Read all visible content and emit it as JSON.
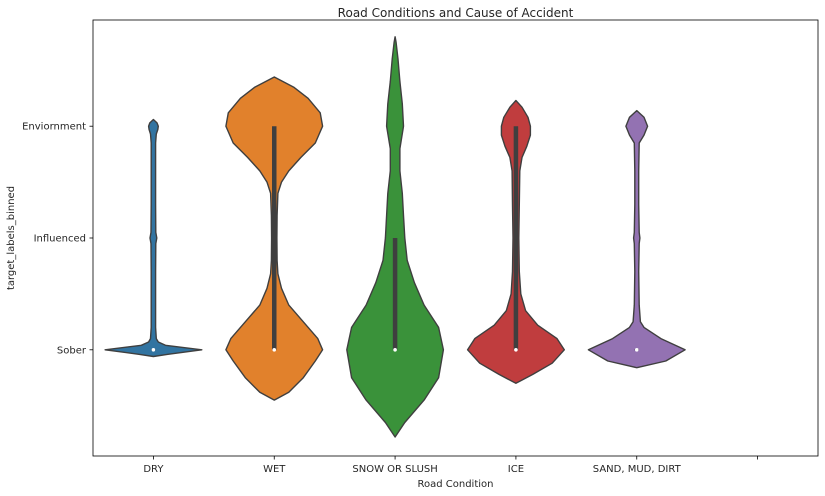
{
  "chart_data": {
    "type": "violin",
    "title": "Road Conditions and Cause of Accident",
    "xlabel": "Road Condition",
    "ylabel": "target_labels_binned",
    "categories": [
      "DRY",
      "WET",
      "SNOW OR SLUSH",
      "ICE",
      "SAND, MUD, DIRT"
    ],
    "y_categories": [
      "Sober",
      "Influenced",
      "Enviornment"
    ],
    "y_values": [
      0,
      1,
      2
    ],
    "ylim": [
      -0.95,
      2.95
    ],
    "colors": [
      "#3274a1",
      "#e1812c",
      "#3a923a",
      "#c03d3e",
      "#9372b2"
    ],
    "violins": [
      {
        "category": "DRY",
        "median": 0,
        "q1": 0,
        "q3": 0,
        "profile_y": [
          -0.06,
          -0.04,
          0,
          0.04,
          0.07,
          0.1,
          0.2,
          0.4,
          0.7,
          0.95,
          1.0,
          1.05,
          1.3,
          1.6,
          1.85,
          1.93,
          1.97,
          2.0,
          2.03,
          2.06
        ],
        "profile_w": [
          0.0,
          0.06,
          0.2,
          0.05,
          0.02,
          0.012,
          0.009,
          0.009,
          0.009,
          0.01,
          0.014,
          0.01,
          0.009,
          0.009,
          0.009,
          0.012,
          0.018,
          0.02,
          0.015,
          0.0
        ]
      },
      {
        "category": "WET",
        "median": 0,
        "q1": 0,
        "q3": 2,
        "profile_y": [
          -0.45,
          -0.38,
          -0.25,
          -0.1,
          0.0,
          0.1,
          0.25,
          0.4,
          0.55,
          0.68,
          0.8,
          1.0,
          1.2,
          1.4,
          1.5,
          1.6,
          1.72,
          1.85,
          2.0,
          2.12,
          2.25,
          2.35,
          2.44
        ],
        "profile_w": [
          0.0,
          0.06,
          0.12,
          0.17,
          0.2,
          0.18,
          0.12,
          0.06,
          0.03,
          0.015,
          0.012,
          0.011,
          0.012,
          0.015,
          0.03,
          0.06,
          0.11,
          0.17,
          0.2,
          0.19,
          0.14,
          0.08,
          0.0
        ]
      },
      {
        "category": "SNOW OR SLUSH",
        "median": 0,
        "q1": 0,
        "q3": 1,
        "profile_y": [
          -0.78,
          -0.65,
          -0.45,
          -0.25,
          0.0,
          0.2,
          0.4,
          0.6,
          0.8,
          1.0,
          1.2,
          1.4,
          1.6,
          1.8,
          2.0,
          2.2,
          2.4,
          2.6,
          2.75,
          2.8
        ],
        "profile_w": [
          0.0,
          0.04,
          0.12,
          0.18,
          0.2,
          0.18,
          0.12,
          0.08,
          0.05,
          0.04,
          0.035,
          0.03,
          0.02,
          0.02,
          0.035,
          0.03,
          0.02,
          0.012,
          0.004,
          0.0
        ]
      },
      {
        "category": "ICE",
        "median": 0,
        "q1": 0,
        "q3": 2,
        "profile_y": [
          -0.3,
          -0.22,
          -0.12,
          0.0,
          0.1,
          0.22,
          0.35,
          0.5,
          0.7,
          1.0,
          1.3,
          1.6,
          1.72,
          1.82,
          1.92,
          2.0,
          2.08,
          2.17,
          2.23
        ],
        "profile_w": [
          0.0,
          0.07,
          0.15,
          0.2,
          0.17,
          0.09,
          0.04,
          0.02,
          0.014,
          0.012,
          0.014,
          0.016,
          0.025,
          0.045,
          0.06,
          0.06,
          0.05,
          0.025,
          0.0
        ]
      },
      {
        "category": "SAND, MUD, DIRT",
        "median": 0,
        "q1": 0,
        "q3": 0,
        "profile_y": [
          -0.16,
          -0.1,
          0.0,
          0.1,
          0.2,
          0.25,
          0.4,
          0.7,
          0.95,
          1.0,
          1.05,
          1.3,
          1.6,
          1.85,
          1.92,
          2.0,
          2.08,
          2.14
        ],
        "profile_w": [
          0.0,
          0.12,
          0.2,
          0.1,
          0.03,
          0.015,
          0.01,
          0.008,
          0.01,
          0.013,
          0.01,
          0.008,
          0.008,
          0.01,
          0.03,
          0.045,
          0.03,
          0.0
        ]
      }
    ]
  }
}
